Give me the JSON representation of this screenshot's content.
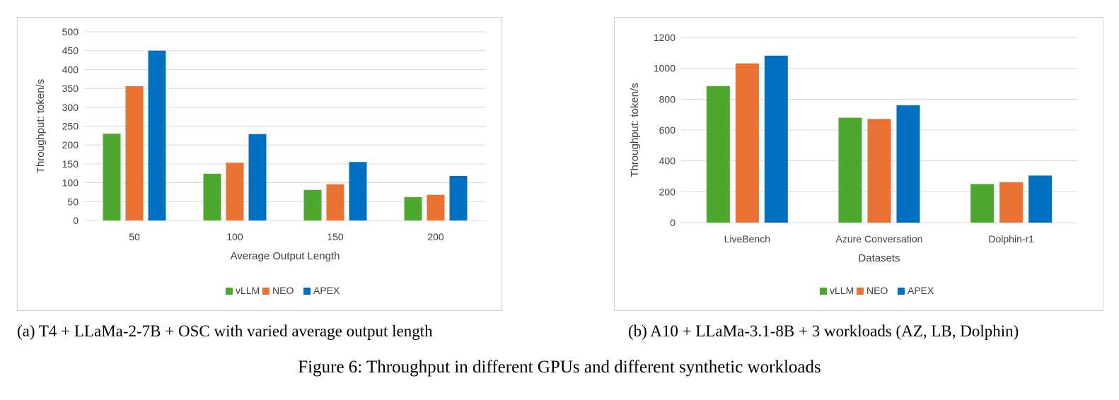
{
  "figure_caption": "Figure 6: Throughput in different GPUs and different synthetic workloads",
  "colors": {
    "vLLM": "#4EA72E",
    "NEO": "#E97132",
    "APEX": "#0070C0",
    "grid": "#d9d9d9"
  },
  "chart_data": [
    {
      "type": "bar",
      "caption": "(a) T4 + LLaMa-2-7B + OSC with varied average output length",
      "categories": [
        "50",
        "100",
        "150",
        "200"
      ],
      "series": [
        {
          "name": "vLLM",
          "values": [
            230,
            124,
            81,
            62
          ]
        },
        {
          "name": "NEO",
          "values": [
            356,
            153,
            96,
            68
          ]
        },
        {
          "name": "APEX",
          "values": [
            450,
            229,
            155,
            118
          ]
        }
      ],
      "xlabel": "Average Output Length",
      "ylabel": "Throughput: token/s",
      "ylim": [
        0,
        500
      ],
      "yticks": [
        0,
        50,
        100,
        150,
        200,
        250,
        300,
        350,
        400,
        450,
        500
      ],
      "grid": true,
      "legend": "bottom"
    },
    {
      "type": "bar",
      "caption": "(b) A10 + LLaMa-3.1-8B + 3 workloads (AZ, LB, Dolphin)",
      "categories": [
        "LiveBench",
        "Azure Conversation",
        "Dolphin-r1"
      ],
      "series": [
        {
          "name": "vLLM",
          "values": [
            885,
            680,
            250
          ]
        },
        {
          "name": "NEO",
          "values": [
            1032,
            672,
            262
          ]
        },
        {
          "name": "APEX",
          "values": [
            1082,
            760,
            305
          ]
        }
      ],
      "xlabel": "Datasets",
      "ylabel": "Throughput: token/s",
      "ylim": [
        0,
        1200
      ],
      "yticks": [
        0,
        200,
        400,
        600,
        800,
        1000,
        1200
      ],
      "grid": true,
      "legend": "bottom"
    }
  ]
}
